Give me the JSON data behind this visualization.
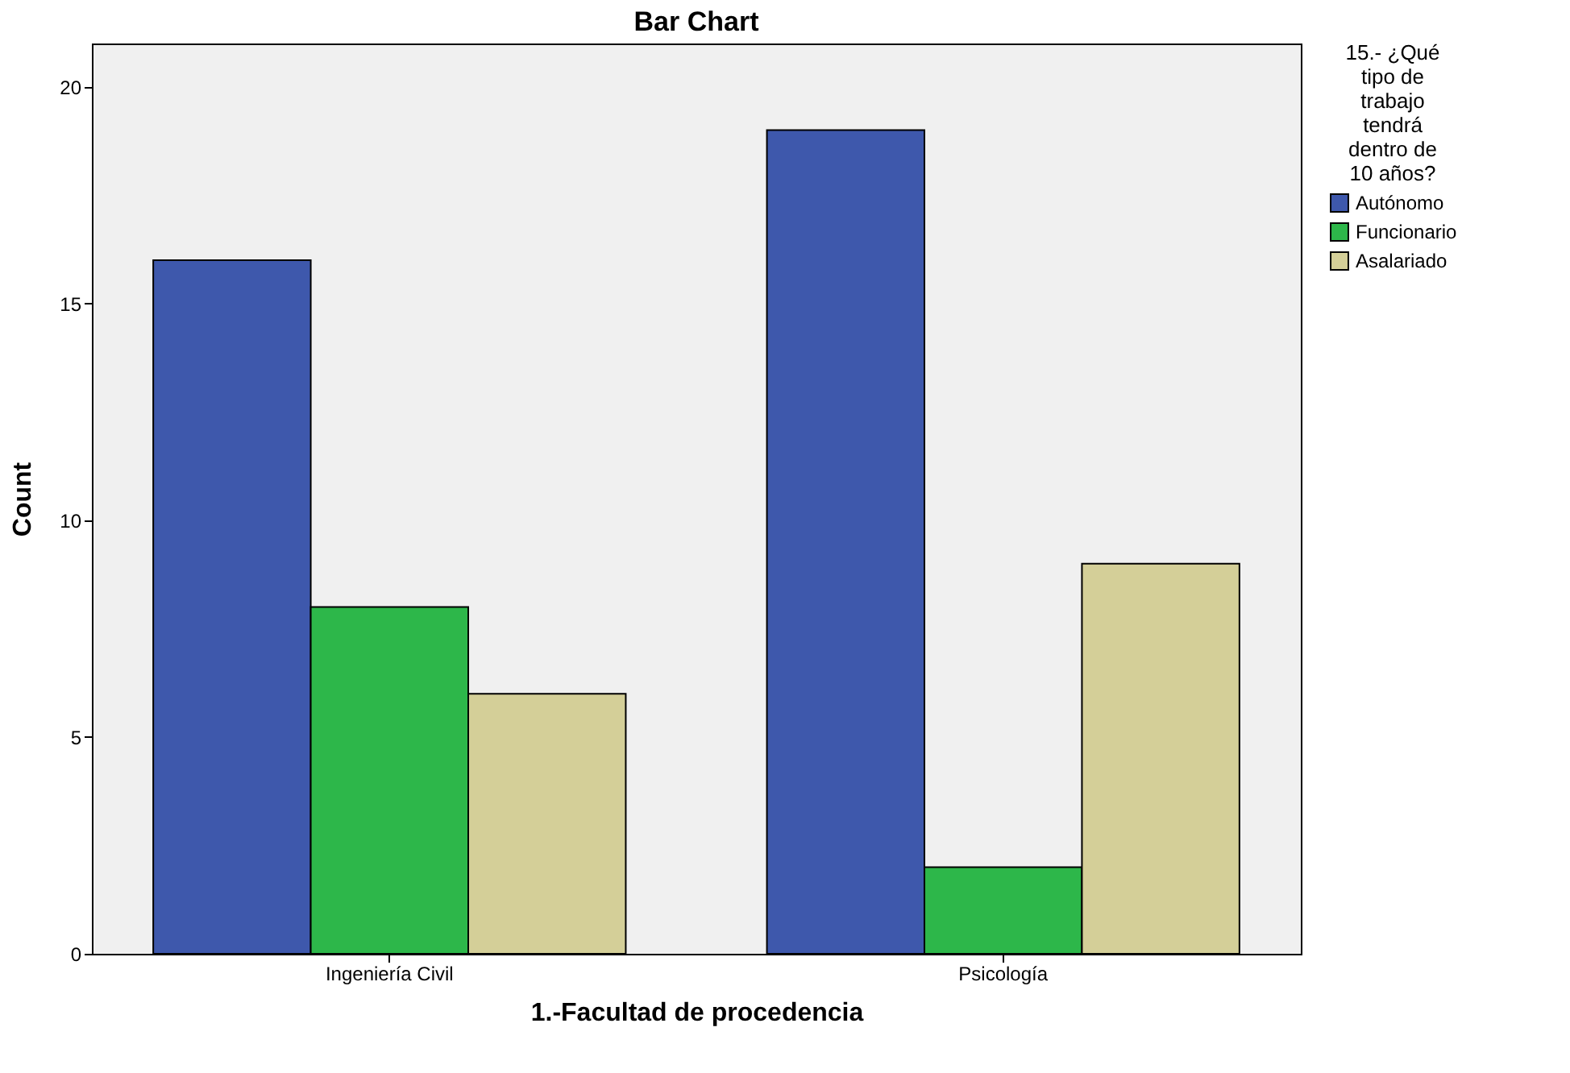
{
  "chart_data": {
    "type": "bar",
    "title": "Bar Chart",
    "xlabel": "1.-Facultad de procedencia",
    "ylabel": "Count",
    "legend_title": "15.- ¿Qué tipo de trabajo tendrá dentro de 10 años?",
    "categories": [
      "Ingeniería Civil",
      "Psicología"
    ],
    "series": [
      {
        "name": "Autónomo",
        "color": "#3e58ac",
        "values": [
          16,
          19
        ]
      },
      {
        "name": "Funcionario",
        "color": "#2db74a",
        "values": [
          8,
          2
        ]
      },
      {
        "name": "Asalariado",
        "color": "#d4cf98",
        "values": [
          6,
          9
        ]
      }
    ],
    "ylim": [
      0,
      21
    ],
    "yticks": [
      0,
      5,
      10,
      15,
      20
    ],
    "grid": false,
    "legend": "right"
  }
}
